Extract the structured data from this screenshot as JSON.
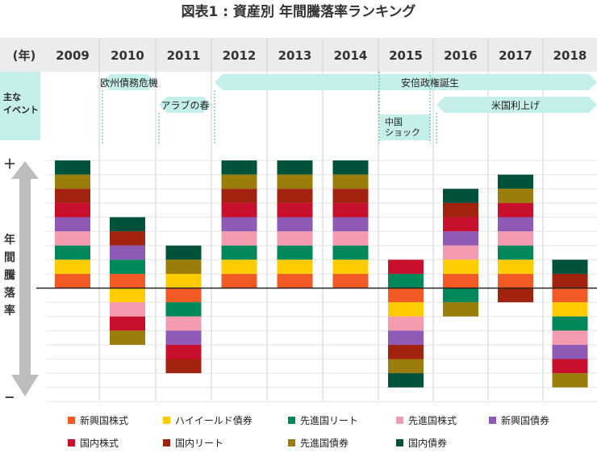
{
  "chart_data": {
    "type": "bar",
    "title": "図表1 : 資産別 年間騰落率ランキング",
    "year_header_label": "(年)",
    "years": [
      "2009",
      "2010",
      "2011",
      "2012",
      "2013",
      "2014",
      "2015",
      "2016",
      "2017",
      "2018"
    ],
    "ylabel": "年間騰落率",
    "y_top_label": "＋",
    "y_bottom_label": "−",
    "events_label": "主な\nイベント",
    "events": [
      {
        "label": "欧州債務危機",
        "year_start": "2010",
        "year_end": "2010",
        "row": 1
      },
      {
        "label": "アラブの春",
        "year_start": "2011",
        "year_end": "2011",
        "row": 2
      },
      {
        "label": "安倍政権誕生",
        "year_start": "2012",
        "year_end": "2018",
        "row": 1
      },
      {
        "label": "米国利上げ",
        "year_start": "2016",
        "year_end": "2018",
        "row": 2
      },
      {
        "label": "中国\nショック",
        "year_start": "2015",
        "year_end": "2015",
        "row": 3
      }
    ],
    "assets": [
      {
        "key": "em_equity",
        "name": "新興国株式",
        "color": "#f15a24"
      },
      {
        "key": "high_yield",
        "name": "ハイイールド債券",
        "color": "#ffcc00"
      },
      {
        "key": "dev_reit",
        "name": "先進国リート",
        "color": "#00875a"
      },
      {
        "key": "dev_equity",
        "name": "先進国株式",
        "color": "#f59bb0"
      },
      {
        "key": "em_bond",
        "name": "新興国債券",
        "color": "#8e5ab5"
      },
      {
        "key": "jp_equity",
        "name": "国内株式",
        "color": "#c8102e"
      },
      {
        "key": "jp_reit",
        "name": "国内リート",
        "color": "#a0220f"
      },
      {
        "key": "dev_bond",
        "name": "先進国債券",
        "color": "#9a7d0a"
      },
      {
        "key": "jp_bond",
        "name": "国内債券",
        "color": "#00533a"
      }
    ],
    "stacks_note": "Each stack lists assets from top to bottom, ranked by annual return; blocks above the zero line were positive, below negative.",
    "stacks": [
      {
        "year": "2009",
        "order": [
          "jp_bond",
          "dev_bond",
          "jp_reit",
          "jp_equity",
          "em_bond",
          "dev_equity",
          "dev_reit",
          "high_yield",
          "em_equity"
        ],
        "positive": 9
      },
      {
        "year": "2010",
        "order": [
          "jp_bond",
          "jp_reit",
          "em_bond",
          "dev_reit",
          "em_equity",
          "high_yield",
          "dev_equity",
          "jp_equity",
          "dev_bond"
        ],
        "positive": 5
      },
      {
        "year": "2011",
        "order": [
          "jp_bond",
          "dev_bond",
          "high_yield",
          "em_equity",
          "dev_reit",
          "dev_equity",
          "em_bond",
          "jp_equity",
          "jp_reit"
        ],
        "positive": 3
      },
      {
        "year": "2012",
        "order": [
          "jp_bond",
          "dev_bond",
          "jp_reit",
          "jp_equity",
          "em_bond",
          "dev_equity",
          "dev_reit",
          "high_yield",
          "em_equity"
        ],
        "positive": 9
      },
      {
        "year": "2013",
        "order": [
          "jp_bond",
          "dev_bond",
          "jp_reit",
          "jp_equity",
          "em_bond",
          "dev_equity",
          "dev_reit",
          "high_yield",
          "em_equity"
        ],
        "positive": 9
      },
      {
        "year": "2014",
        "order": [
          "jp_bond",
          "dev_bond",
          "jp_reit",
          "jp_equity",
          "em_bond",
          "dev_equity",
          "dev_reit",
          "high_yield",
          "em_equity"
        ],
        "positive": 9
      },
      {
        "year": "2015",
        "order": [
          "jp_equity",
          "dev_reit",
          "em_equity",
          "high_yield",
          "dev_equity",
          "em_bond",
          "jp_reit",
          "dev_bond",
          "jp_bond"
        ],
        "positive": 2
      },
      {
        "year": "2016",
        "order": [
          "jp_bond",
          "jp_reit",
          "jp_equity",
          "em_bond",
          "dev_equity",
          "high_yield",
          "em_equity",
          "dev_reit",
          "dev_bond"
        ],
        "positive": 7
      },
      {
        "year": "2017",
        "order": [
          "jp_bond",
          "dev_bond",
          "jp_equity",
          "em_bond",
          "dev_equity",
          "dev_reit",
          "high_yield",
          "em_equity",
          "jp_reit"
        ],
        "positive": 8
      },
      {
        "year": "2018",
        "order": [
          "jp_bond",
          "jp_reit",
          "em_equity",
          "high_yield",
          "dev_reit",
          "dev_equity",
          "em_bond",
          "jp_equity",
          "dev_bond"
        ],
        "positive": 2
      }
    ]
  }
}
